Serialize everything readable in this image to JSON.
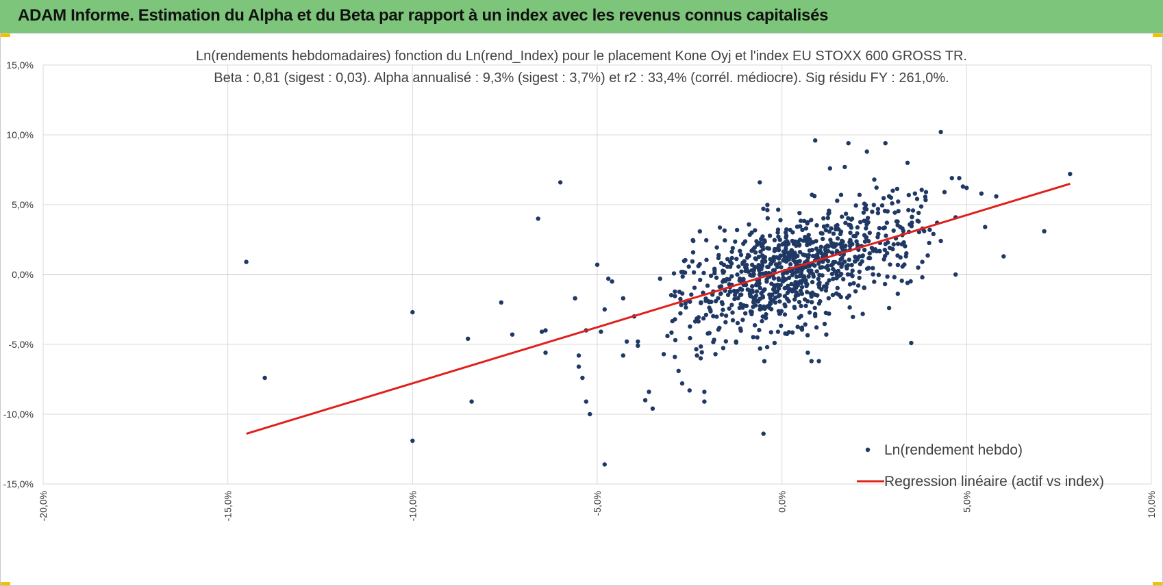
{
  "header": {
    "title": "ADAM Informe. Estimation du Alpha et du Beta par rapport à un index avec les revenus connus capitalisés"
  },
  "colors": {
    "banner": "#7dc57a",
    "points": "#1f3864",
    "regression": "#e0201b",
    "grid": "#d9d9d9",
    "corner_marks": "#f2c200"
  },
  "chart_data": {
    "type": "scatter",
    "title": "Ln(rendements hebdomadaires) fonction du Ln(rend_Index) pour le placement Kone Oyj et l'index EU STOXX 600 GROSS TR.",
    "subtitle": "Beta : 0,81 (sigest : 0,03). Alpha annualisé : 9,3% (sigest : 3,7%) et r2 : 33,4% (corrél. médiocre). Sig résidu FY : 261,0%.",
    "xlabel": "",
    "ylabel": "",
    "xlim": [
      -0.2,
      0.1
    ],
    "ylim": [
      -0.15,
      0.15
    ],
    "x_ticks": [
      -0.2,
      -0.15,
      -0.1,
      -0.05,
      0.0,
      0.05,
      0.1
    ],
    "y_ticks": [
      -0.15,
      -0.1,
      -0.05,
      0.0,
      0.05,
      0.1,
      0.15
    ],
    "x_tick_labels": [
      "-20,0%",
      "-15,0%",
      "-10,0%",
      "-5,0%",
      "0,0%",
      "5,0%",
      "10,0%"
    ],
    "y_tick_labels": [
      "-15,0%",
      "-10,0%",
      "-5,0%",
      "0,0%",
      "5,0%",
      "10,0%",
      "15,0%"
    ],
    "grid": true,
    "legend_position": "bottom-right",
    "series": [
      {
        "name": "Ln(rendement hebdo)",
        "kind": "scatter",
        "outliers": [
          [
            -0.145,
            0.009
          ],
          [
            -0.14,
            -0.074
          ],
          [
            -0.1,
            -0.027
          ],
          [
            -0.1,
            -0.119
          ],
          [
            -0.085,
            -0.046
          ],
          [
            -0.084,
            -0.091
          ],
          [
            -0.076,
            -0.02
          ],
          [
            -0.073,
            -0.043
          ],
          [
            -0.066,
            0.04
          ],
          [
            -0.065,
            -0.041
          ],
          [
            -0.064,
            -0.04
          ],
          [
            -0.064,
            -0.056
          ],
          [
            -0.06,
            0.066
          ],
          [
            -0.056,
            -0.017
          ],
          [
            -0.055,
            -0.058
          ],
          [
            -0.055,
            -0.066
          ],
          [
            -0.054,
            -0.074
          ],
          [
            -0.053,
            -0.091
          ],
          [
            -0.053,
            -0.04
          ],
          [
            -0.052,
            -0.1
          ],
          [
            -0.05,
            0.007
          ],
          [
            -0.049,
            -0.041
          ],
          [
            -0.048,
            -0.025
          ],
          [
            -0.048,
            -0.136
          ],
          [
            -0.047,
            -0.003
          ],
          [
            -0.046,
            -0.005
          ],
          [
            -0.043,
            -0.017
          ],
          [
            -0.043,
            -0.058
          ],
          [
            -0.042,
            -0.048
          ],
          [
            -0.04,
            -0.03
          ],
          [
            -0.039,
            -0.048
          ],
          [
            -0.039,
            -0.051
          ],
          [
            -0.037,
            -0.09
          ],
          [
            -0.036,
            -0.084
          ],
          [
            -0.035,
            -0.096
          ],
          [
            -0.033,
            -0.003
          ],
          [
            -0.032,
            -0.057
          ],
          [
            -0.031,
            -0.044
          ],
          [
            -0.029,
            -0.059
          ],
          [
            -0.028,
            -0.069
          ],
          [
            -0.027,
            -0.078
          ],
          [
            -0.025,
            -0.083
          ],
          [
            -0.024,
            0.024
          ],
          [
            -0.023,
            -0.058
          ],
          [
            -0.022,
            -0.06
          ],
          [
            -0.021,
            -0.084
          ],
          [
            -0.021,
            -0.091
          ],
          [
            -0.018,
            -0.057
          ],
          [
            -0.006,
            0.066
          ],
          [
            -0.005,
            -0.114
          ],
          [
            -0.004,
            -0.052
          ],
          [
            -0.002,
            -0.049
          ],
          [
            0.007,
            -0.056
          ],
          [
            0.008,
            -0.062
          ],
          [
            0.009,
            0.096
          ],
          [
            0.01,
            -0.062
          ],
          [
            0.012,
            -0.043
          ],
          [
            0.013,
            0.076
          ],
          [
            0.016,
            0.057
          ],
          [
            0.017,
            0.077
          ],
          [
            0.018,
            0.094
          ],
          [
            0.019,
            0.04
          ],
          [
            0.021,
            0.057
          ],
          [
            0.023,
            0.088
          ],
          [
            0.025,
            0.068
          ],
          [
            0.026,
            0.044
          ],
          [
            0.028,
            0.094
          ],
          [
            0.029,
            -0.024
          ],
          [
            0.03,
            0.06
          ],
          [
            0.031,
            0.038
          ],
          [
            0.033,
            0.023
          ],
          [
            0.034,
            -0.006
          ],
          [
            0.034,
            0.08
          ],
          [
            0.035,
            -0.049
          ],
          [
            0.036,
            0.058
          ],
          [
            0.037,
            0.038
          ],
          [
            0.038,
            0.009
          ],
          [
            0.038,
            -0.002
          ],
          [
            0.039,
            0.059
          ],
          [
            0.04,
            0.032
          ],
          [
            0.041,
            0.029
          ],
          [
            0.042,
            0.037
          ],
          [
            0.043,
            0.102
          ],
          [
            0.043,
            0.024
          ],
          [
            0.044,
            0.059
          ],
          [
            0.046,
            0.069
          ],
          [
            0.047,
            0.041
          ],
          [
            0.047,
            0.0
          ],
          [
            0.048,
            0.069
          ],
          [
            0.049,
            0.063
          ],
          [
            0.05,
            0.062
          ],
          [
            0.054,
            0.058
          ],
          [
            0.055,
            0.034
          ],
          [
            0.058,
            0.056
          ],
          [
            0.06,
            0.013
          ],
          [
            0.071,
            0.031
          ],
          [
            0.078,
            0.072
          ]
        ],
        "cluster": {
          "n_points": 920,
          "beta": 0.81,
          "x_center": 0.003,
          "x_spread": 0.017,
          "y_intercept": 0.0015,
          "residual_sd": 0.019
        }
      },
      {
        "name": "Regression linéaire (actif vs index)",
        "kind": "line",
        "x": [
          -0.145,
          0.078
        ],
        "y": [
          -0.114,
          0.065
        ]
      }
    ]
  }
}
